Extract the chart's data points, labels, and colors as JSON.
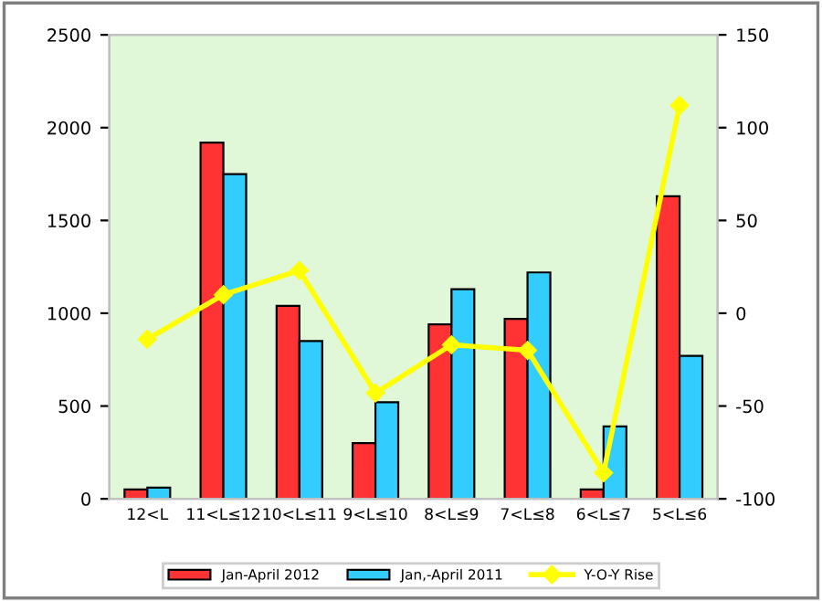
{
  "chart_data": {
    "type": "bar",
    "categories": [
      "12<L",
      "11<L≤12",
      "10<L≤11",
      "9<L≤10",
      "8<L≤9",
      "7<L≤8",
      "6<L≤7",
      "5<L≤6"
    ],
    "series": [
      {
        "name": "Jan-April 2012",
        "color": "#ff3333",
        "values": [
          50,
          1920,
          1040,
          300,
          940,
          970,
          50,
          1630
        ]
      },
      {
        "name": "Jan,-April 2011",
        "color": "#33ccff",
        "values": [
          60,
          1750,
          850,
          520,
          1130,
          1220,
          390,
          770
        ]
      },
      {
        "name": "Y-O-Y Rise",
        "type": "line",
        "axis": "y2",
        "color": "#ffff00",
        "marker": "diamond",
        "values": [
          -14,
          10,
          23,
          -43,
          -17,
          -20,
          -86,
          112
        ]
      }
    ],
    "ylim": [
      0,
      2500
    ],
    "yticks": [
      0,
      500,
      1000,
      1500,
      2000,
      2500
    ],
    "y2lim": [
      -100,
      150
    ],
    "y2ticks": [
      -100,
      -50,
      0,
      50,
      100,
      150
    ],
    "grid": false,
    "legend": "bottom"
  }
}
